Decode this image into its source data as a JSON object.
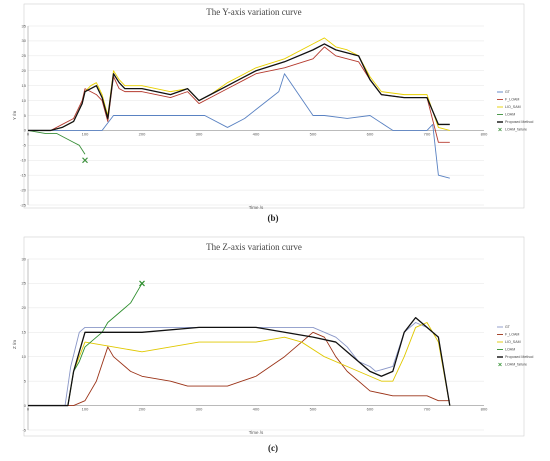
{
  "chart_data": [
    {
      "type": "line",
      "title": "The Y-axis variation curve",
      "caption": "(b)",
      "xlabel": "Time /s",
      "ylabel": "Y /m",
      "xlim": [
        0,
        800
      ],
      "ylim": [
        -25,
        35
      ],
      "xticks": [
        "0",
        "100",
        "200",
        "300",
        "400",
        "500",
        "600",
        "700",
        "800"
      ],
      "yticks": [
        "-25",
        "-20",
        "-15",
        "-10",
        "-5",
        "0",
        "5",
        "10",
        "15",
        "20",
        "25",
        "30",
        "35"
      ],
      "grid": true,
      "legend_position": "right",
      "series": [
        {
          "name": "GT",
          "color": "#5a82c2",
          "x": [
            0,
            50,
            100,
            130,
            150,
            200,
            250,
            300,
            310,
            350,
            380,
            400,
            440,
            450,
            500,
            520,
            560,
            600,
            640,
            700,
            710,
            720,
            740
          ],
          "y": [
            0,
            0,
            0,
            0,
            5,
            5,
            5,
            5,
            5,
            1,
            4,
            7,
            13,
            19,
            5,
            5,
            4,
            5,
            0,
            0,
            2,
            -15,
            -16
          ]
        },
        {
          "name": "F_LOAM",
          "color": "#b53a2e",
          "x": [
            0,
            40,
            60,
            80,
            95,
            100,
            110,
            120,
            130,
            140,
            150,
            160,
            170,
            180,
            200,
            250,
            280,
            300,
            320,
            350,
            380,
            400,
            450,
            500,
            520,
            540,
            560,
            580,
            600,
            620,
            660,
            680,
            700,
            720,
            740
          ],
          "y": [
            0,
            0,
            2,
            4,
            10,
            14,
            13,
            12,
            10,
            3,
            18,
            14,
            13,
            13,
            13,
            11,
            13,
            9,
            11,
            14,
            17,
            19,
            21,
            24,
            28,
            25,
            24,
            23,
            17,
            12,
            11,
            11,
            11,
            -4,
            -4
          ]
        },
        {
          "name": "LIO_SAM",
          "color": "#e8d000",
          "x": [
            0,
            40,
            60,
            80,
            95,
            100,
            110,
            120,
            130,
            140,
            150,
            160,
            170,
            180,
            200,
            250,
            280,
            300,
            320,
            350,
            380,
            400,
            450,
            500,
            520,
            540,
            560,
            580,
            600,
            620,
            660,
            680,
            700,
            720,
            740
          ],
          "y": [
            0,
            0,
            1,
            3,
            9,
            13,
            15,
            16,
            12,
            5,
            20,
            17,
            15,
            15,
            15,
            13,
            14,
            10,
            12,
            16,
            19,
            21,
            24,
            29,
            31,
            28,
            27,
            25,
            18,
            13,
            12,
            12,
            12,
            1,
            0
          ]
        },
        {
          "name": "LOAM",
          "color": "#3a8f3a",
          "x": [
            0,
            30,
            50,
            70,
            80,
            90,
            100
          ],
          "y": [
            0,
            -1,
            -1,
            -3,
            -4,
            -5,
            -8
          ]
        },
        {
          "name": "Proposed Method",
          "color": "#111111",
          "x": [
            0,
            40,
            60,
            80,
            95,
            100,
            110,
            120,
            130,
            140,
            150,
            160,
            170,
            180,
            200,
            250,
            280,
            300,
            320,
            350,
            380,
            400,
            450,
            500,
            520,
            540,
            560,
            580,
            600,
            620,
            660,
            680,
            700,
            720,
            740
          ],
          "y": [
            0,
            0,
            1,
            3,
            9,
            13,
            14,
            15,
            11,
            4,
            19,
            16,
            14,
            14,
            14,
            12,
            14,
            10,
            12,
            15,
            18,
            20,
            23,
            27,
            29,
            27,
            26,
            25,
            17,
            12,
            11,
            11,
            11,
            2,
            2
          ]
        }
      ],
      "markers": [
        {
          "name": "LOAM_failure",
          "color": "#3a8f3a",
          "x": 100,
          "y": -10
        }
      ]
    },
    {
      "type": "line",
      "title": "The Z-axis variation curve",
      "caption": "(c)",
      "xlabel": "Time /s",
      "ylabel": "Z /m",
      "xlim": [
        0,
        800
      ],
      "ylim": [
        -5,
        30
      ],
      "xticks": [
        "0",
        "100",
        "200",
        "300",
        "400",
        "500",
        "600",
        "700",
        "800"
      ],
      "yticks": [
        "-5",
        "0",
        "5",
        "10",
        "15",
        "20",
        "25",
        "30"
      ],
      "grid": true,
      "legend_position": "right",
      "series": [
        {
          "name": "GT",
          "color": "#8a97c8",
          "x": [
            0,
            50,
            65,
            75,
            90,
            100,
            150,
            200,
            300,
            400,
            500,
            540,
            560,
            580,
            600,
            610,
            640,
            660,
            680,
            700,
            720,
            740
          ],
          "y": [
            0,
            0,
            0,
            8,
            15,
            16,
            16,
            16,
            16,
            16,
            16,
            14,
            12,
            9,
            8,
            7,
            8,
            15,
            17,
            16,
            14,
            0
          ]
        },
        {
          "name": "F_LOAM",
          "color": "#9b3318",
          "x": [
            0,
            50,
            80,
            100,
            120,
            140,
            150,
            180,
            200,
            250,
            280,
            300,
            350,
            400,
            450,
            500,
            520,
            540,
            560,
            600,
            640,
            660,
            680,
            700,
            720,
            740
          ],
          "y": [
            0,
            0,
            0,
            1,
            5,
            12,
            10,
            7,
            6,
            5,
            4,
            4,
            4,
            6,
            10,
            15,
            14,
            10,
            7,
            3,
            2,
            2,
            2,
            2,
            1,
            1
          ]
        },
        {
          "name": "LIO_SAM",
          "color": "#e0c800",
          "x": [
            0,
            50,
            70,
            80,
            100,
            150,
            200,
            250,
            300,
            350,
            400,
            450,
            480,
            520,
            560,
            600,
            620,
            640,
            660,
            680,
            700,
            720,
            740
          ],
          "y": [
            0,
            0,
            0,
            7,
            13,
            12,
            11,
            12,
            13,
            13,
            13,
            14,
            13,
            10,
            8,
            6,
            5,
            5,
            10,
            16,
            17,
            13,
            0
          ]
        },
        {
          "name": "LOAM",
          "color": "#2f8f2f",
          "x": [
            0,
            50,
            70,
            80,
            90,
            100,
            110,
            120,
            130,
            140,
            150,
            160,
            170,
            180,
            190,
            200
          ],
          "y": [
            0,
            0,
            0,
            7,
            9,
            12,
            13,
            14,
            15,
            17,
            18,
            19,
            20,
            21,
            23,
            25
          ]
        },
        {
          "name": "Proposed Method",
          "color": "#111111",
          "x": [
            0,
            50,
            70,
            80,
            90,
            100,
            150,
            200,
            300,
            400,
            450,
            500,
            540,
            560,
            580,
            600,
            620,
            640,
            660,
            680,
            700,
            720,
            740
          ],
          "y": [
            0,
            0,
            0,
            7,
            11,
            15,
            15,
            15,
            16,
            16,
            15,
            14,
            13,
            11,
            9,
            7,
            6,
            7,
            15,
            18,
            16,
            14,
            0
          ]
        }
      ],
      "markers": [
        {
          "name": "LOAM_failure",
          "color": "#2f8f2f",
          "x": 200,
          "y": 25
        }
      ]
    }
  ]
}
